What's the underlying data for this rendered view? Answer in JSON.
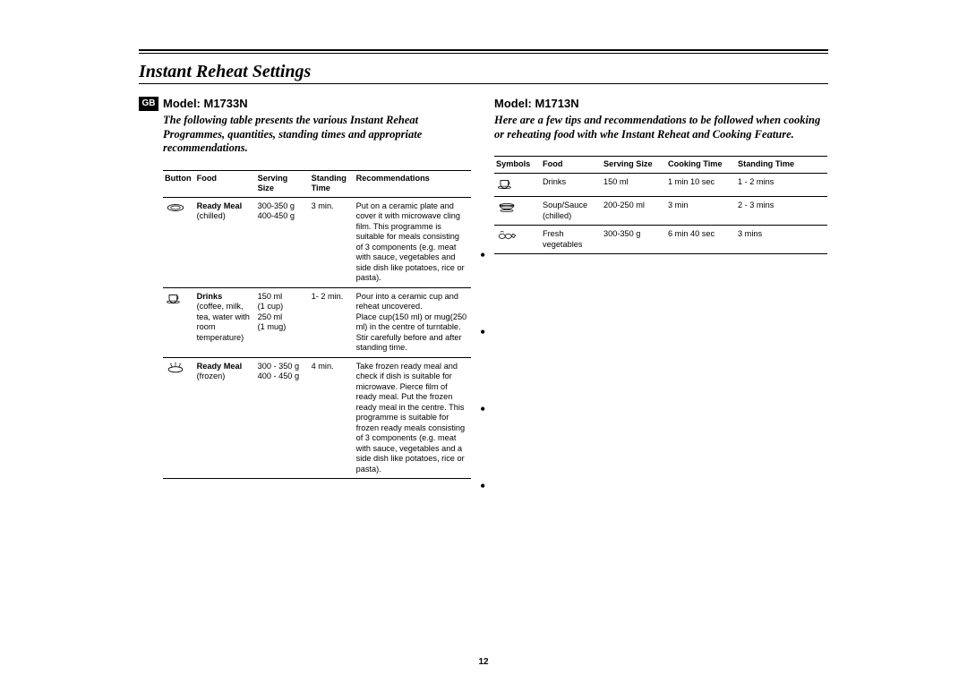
{
  "gb_label": "GB",
  "page_title": "Instant Reheat Settings",
  "page_number": "12",
  "left": {
    "model": "Model: M1733N",
    "desc": "The following table presents the various Instant Reheat Programmes, quantities, standing times and appropriate recommendations.",
    "headers": {
      "button": "Button",
      "food": "Food",
      "serving": "Serving Size",
      "standing": "Standing Time",
      "rec": "Recommendations"
    },
    "rows": [
      {
        "icon": "plate",
        "food_bold": "Ready Meal",
        "food_sub": "(chilled)",
        "serving": "300-350 g\n400-450 g",
        "standing": "3 min.",
        "rec": "Put on a ceramic plate and cover it with microwave cling film. This programme is suitable for meals consisting of 3 components (e.g. meat with sauce, vegetables and side dish like potatoes, rice or pasta)."
      },
      {
        "icon": "cup",
        "food_bold": "Drinks",
        "food_sub": "(coffee, milk, tea, water with room temperature)",
        "serving": "150 ml\n(1 cup)\n250 ml\n(1 mug)",
        "standing": "1- 2 min.",
        "rec": "Pour into a ceramic cup and reheat uncovered.\nPlace cup(150 ml) or mug(250 ml) in the centre of turntable. Stir carefully before and after standing time."
      },
      {
        "icon": "frozen",
        "food_bold": "Ready Meal",
        "food_sub": "(frozen)",
        "serving": "300 - 350 g\n400 - 450 g",
        "standing": "4 min.",
        "rec": "Take frozen ready meal and check if dish is suitable for microwave. Pierce film of ready meal. Put the frozen ready meal in the centre. This programme is suitable for frozen ready meals consisting of 3 components (e.g. meat with sauce, vegetables and a side dish like potatoes, rice or pasta)."
      }
    ]
  },
  "right": {
    "model": "Model: M1713N",
    "desc": "Here are a few tips and recommendations to be followed when cooking or reheating food with whe Instant Reheat and Cooking Feature.",
    "headers": {
      "symbols": "Symbols",
      "food": "Food",
      "serving": "Serving Size",
      "cooking": "Cooking Time",
      "standing": "Standing Time"
    },
    "rows": [
      {
        "icon": "cup",
        "food": "Drinks",
        "serving": "150 ml",
        "cooking": "1 min 10 sec",
        "standing": "1 - 2 mins"
      },
      {
        "icon": "bowl",
        "food": "Soup/Sauce\n(chilled)",
        "serving": "200-250 ml",
        "cooking": "3 min",
        "standing": "2 - 3 mins"
      },
      {
        "icon": "veg",
        "food": "Fresh\nvegetables",
        "serving": "300-350 g",
        "cooking": "6 min 40 sec",
        "standing": "3 mins"
      }
    ]
  }
}
